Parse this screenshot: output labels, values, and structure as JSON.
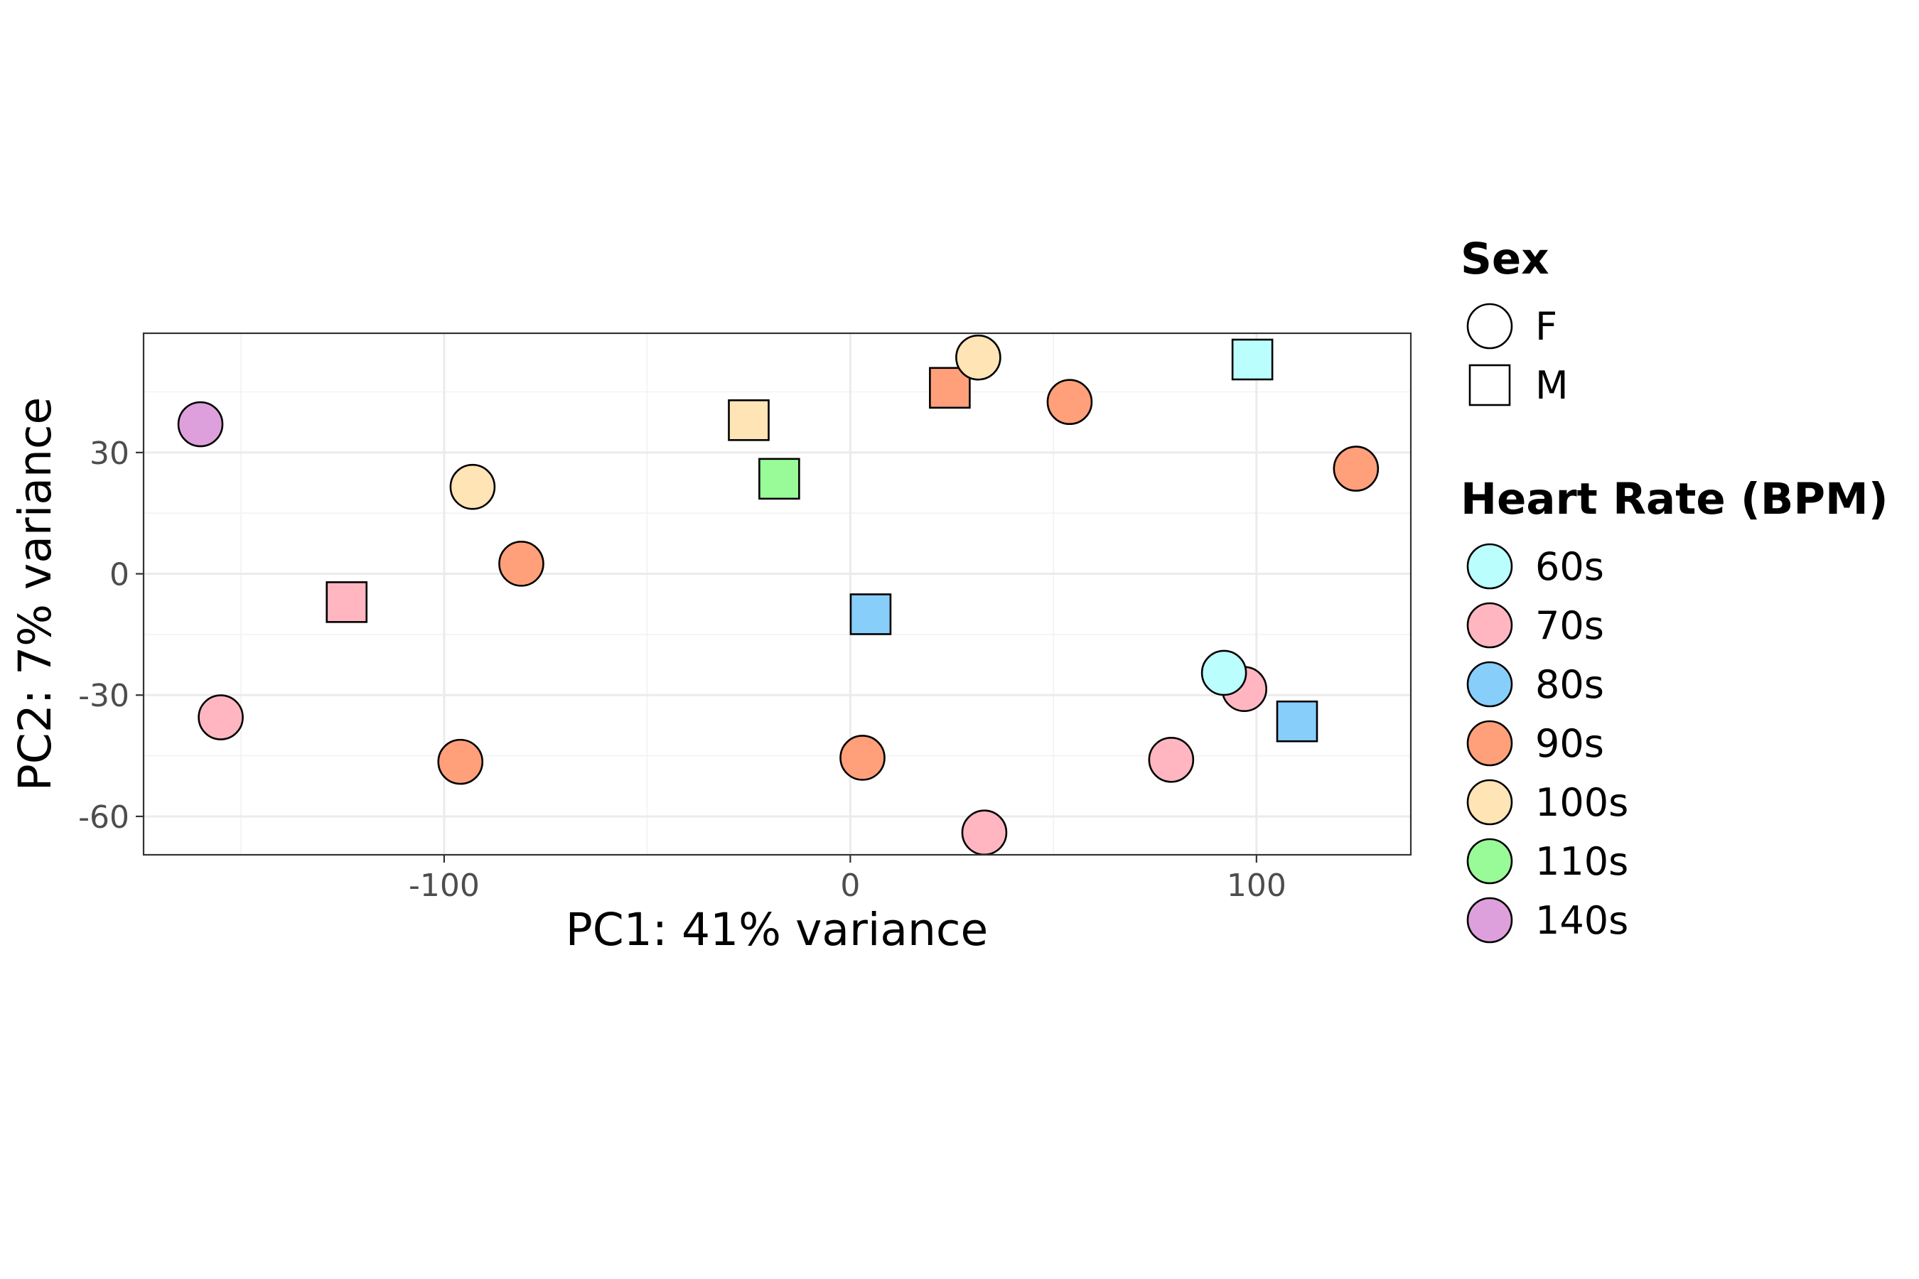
{
  "chart_data": {
    "type": "scatter",
    "xlabel": "PC1: 41% variance",
    "ylabel": "PC2: 7% variance",
    "xlim": [
      -174,
      138
    ],
    "ylim": [
      -69.5,
      59.5
    ],
    "x_ticks": [
      -100,
      0,
      100
    ],
    "y_ticks": [
      -60,
      -30,
      0,
      30
    ],
    "x_tick_labels": [
      "-100",
      "0",
      "100"
    ],
    "y_tick_labels": [
      "-60",
      "-30",
      "0",
      "30"
    ],
    "grid": true,
    "legend_position": "right",
    "legend_shape": {
      "title": "Sex",
      "items": [
        {
          "label": "F",
          "shape": "circle"
        },
        {
          "label": "M",
          "shape": "square"
        }
      ]
    },
    "legend_color": {
      "title": "Heart Rate (BPM)",
      "items": [
        {
          "label": "60s",
          "color": "#bbfefe"
        },
        {
          "label": "70s",
          "color": "#ffb6c1"
        },
        {
          "label": "80s",
          "color": "#87cefa"
        },
        {
          "label": "90s",
          "color": "#ffa07a"
        },
        {
          "label": "100s",
          "color": "#ffe4b5"
        },
        {
          "label": "110s",
          "color": "#98fb98"
        },
        {
          "label": "140s",
          "color": "#dda0dd"
        }
      ]
    },
    "points": [
      {
        "x": -160,
        "y": 37,
        "sex": "F",
        "hr": "140s"
      },
      {
        "x": -155,
        "y": -35.5,
        "sex": "F",
        "hr": "70s"
      },
      {
        "x": -124,
        "y": -7,
        "sex": "M",
        "hr": "70s"
      },
      {
        "x": -96,
        "y": -46.5,
        "sex": "F",
        "hr": "90s"
      },
      {
        "x": -93,
        "y": 21.5,
        "sex": "F",
        "hr": "100s"
      },
      {
        "x": -81,
        "y": 2.5,
        "sex": "F",
        "hr": "90s"
      },
      {
        "x": -25,
        "y": 38,
        "sex": "M",
        "hr": "100s"
      },
      {
        "x": -17.5,
        "y": 23.5,
        "sex": "M",
        "hr": "110s"
      },
      {
        "x": 3,
        "y": -45.5,
        "sex": "F",
        "hr": "90s"
      },
      {
        "x": 5,
        "y": -10,
        "sex": "M",
        "hr": "80s"
      },
      {
        "x": 24.5,
        "y": 46,
        "sex": "M",
        "hr": "90s"
      },
      {
        "x": 31.5,
        "y": 53.5,
        "sex": "F",
        "hr": "100s"
      },
      {
        "x": 33,
        "y": -64,
        "sex": "F",
        "hr": "70s"
      },
      {
        "x": 54,
        "y": 42.5,
        "sex": "F",
        "hr": "90s"
      },
      {
        "x": 79,
        "y": -46,
        "sex": "F",
        "hr": "70s"
      },
      {
        "x": 97,
        "y": -28.5,
        "sex": "F",
        "hr": "70s"
      },
      {
        "x": 92,
        "y": -24.5,
        "sex": "F",
        "hr": "60s"
      },
      {
        "x": 99,
        "y": 53,
        "sex": "M",
        "hr": "60s"
      },
      {
        "x": 110,
        "y": -36.5,
        "sex": "M",
        "hr": "80s"
      },
      {
        "x": 124.5,
        "y": 26,
        "sex": "F",
        "hr": "90s"
      }
    ]
  }
}
